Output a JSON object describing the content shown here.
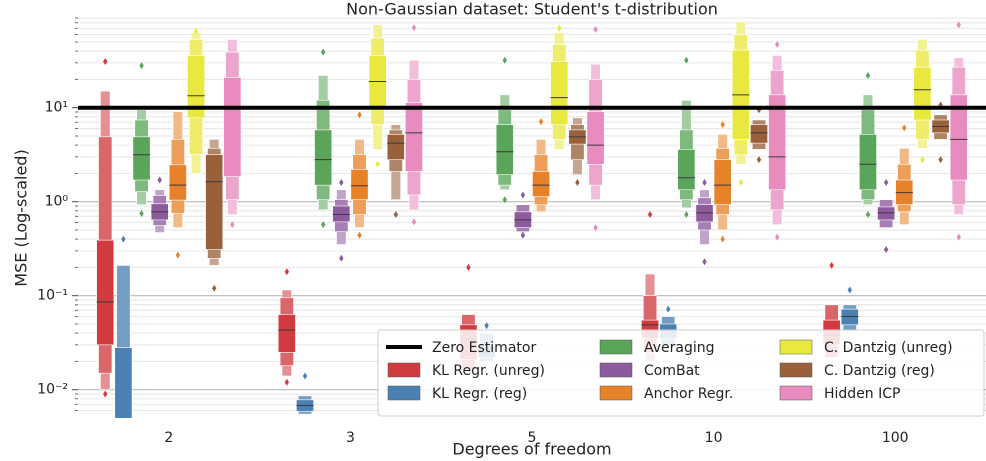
{
  "chart_data": {
    "type": "boxen",
    "title": "Non-Gaussian dataset: Student's t-distribution",
    "x_label": "Degrees of freedom",
    "y_label": "MSE (Log-scaled)",
    "log_y": true,
    "grid": true,
    "legend_loc": "lower right",
    "categories": [
      "2",
      "3",
      "5",
      "10",
      "100"
    ],
    "ylim": [
      0.005,
      90
    ],
    "yticks": [
      {
        "value": 0.01,
        "label": "10⁻²"
      },
      {
        "value": 0.1,
        "label": "10⁻¹"
      },
      {
        "value": 1,
        "label": "10⁰"
      },
      {
        "value": 10,
        "label": "10¹"
      }
    ],
    "minor_yticks": [
      0.006,
      0.007,
      0.008,
      0.009,
      0.02,
      0.03,
      0.04,
      0.05,
      0.06,
      0.07,
      0.08,
      0.09,
      0.2,
      0.3,
      0.4,
      0.5,
      0.6,
      0.7,
      0.8,
      0.9,
      2,
      3,
      4,
      5,
      6,
      7,
      8,
      9,
      20,
      30,
      40,
      50,
      60,
      70,
      80,
      90
    ],
    "reference": {
      "name": "Zero Estimator",
      "value": 10,
      "color": "#000000"
    },
    "series": [
      {
        "name": "KL Regr. (unreg)",
        "color": "#d13b40",
        "values": [
          {
            "median": 0.086,
            "boxes": [
              [
                0.03,
                0.39
              ],
              [
                0.015,
                4.9
              ],
              [
                0.01,
                15
              ]
            ],
            "outliers": [
              31,
              0.009
            ]
          },
          {
            "median": 0.043,
            "boxes": [
              [
                0.025,
                0.063
              ],
              [
                0.018,
                0.095
              ],
              [
                0.014,
                0.115
              ]
            ],
            "outliers": [
              0.18,
              0.012
            ]
          },
          {
            "median": 0.034,
            "boxes": [
              [
                0.021,
                0.049
              ],
              [
                0.016,
                0.063
              ]
            ],
            "outliers": [
              0.2
            ]
          },
          {
            "median": 0.049,
            "boxes": [
              [
                0.035,
                0.055
              ],
              [
                0.025,
                0.1
              ],
              [
                0.02,
                0.17
              ]
            ],
            "outliers": [
              0.73
            ]
          },
          {
            "median": 0.038,
            "boxes": [
              [
                0.03,
                0.055
              ],
              [
                0.022,
                0.08
              ]
            ],
            "outliers": [
              0.21
            ]
          }
        ]
      },
      {
        "name": "KL Regr. (reg)",
        "color": "#4b81b2",
        "values": [
          {
            "median": 0.003,
            "boxes": [
              [
                0.002,
                0.028
              ],
              [
                0.001,
                0.21
              ]
            ],
            "outliers": [
              0.4
            ]
          },
          {
            "median": 0.0068,
            "boxes": [
              [
                0.0059,
                0.0078
              ],
              [
                0.0055,
                0.0086
              ]
            ],
            "outliers": [
              0.014
            ]
          },
          {
            "median": 0.025,
            "boxes": [
              [
                0.022,
                0.03
              ],
              [
                0.02,
                0.04
              ]
            ],
            "outliers": [
              0.048
            ]
          },
          {
            "median": 0.043,
            "boxes": [
              [
                0.035,
                0.05
              ],
              [
                0.03,
                0.06
              ]
            ],
            "outliers": [
              0.072
            ]
          },
          {
            "median": 0.06,
            "boxes": [
              [
                0.049,
                0.072
              ],
              [
                0.043,
                0.08
              ]
            ],
            "outliers": [
              0.115
            ]
          }
        ]
      },
      {
        "name": "Averaging",
        "color": "#5aa55a",
        "values": [
          {
            "median": 3.16,
            "boxes": [
              [
                1.7,
                4.9
              ],
              [
                1.28,
                7.4
              ],
              [
                0.93,
                9.5
              ]
            ],
            "outliers": [
              28,
              0.75
            ]
          },
          {
            "median": 2.8,
            "boxes": [
              [
                1.5,
                5.8
              ],
              [
                1.05,
                12
              ],
              [
                0.82,
                22
              ]
            ],
            "outliers": [
              39,
              0.57
            ]
          },
          {
            "median": 3.4,
            "boxes": [
              [
                1.94,
                6.6
              ],
              [
                1.5,
                9.5
              ],
              [
                1.34,
                13.7
              ]
            ],
            "outliers": [
              32,
              1.05
            ]
          },
          {
            "median": 1.8,
            "boxes": [
              [
                1.34,
                3.6
              ],
              [
                1.05,
                5.8
              ],
              [
                0.86,
                12
              ]
            ],
            "outliers": [
              32,
              0.73
            ]
          },
          {
            "median": 2.5,
            "boxes": [
              [
                1.34,
                5.2
              ],
              [
                1.05,
                9.5
              ],
              [
                0.93,
                13.7
              ]
            ],
            "outliers": [
              22,
              0.73
            ]
          }
        ]
      },
      {
        "name": "ComBat",
        "color": "#8e5a9e",
        "values": [
          {
            "median": 0.78,
            "boxes": [
              [
                0.64,
                0.95
              ],
              [
                0.56,
                1.16
              ],
              [
                0.47,
                1.34
              ]
            ],
            "outliers": [
              1.7
            ]
          },
          {
            "median": 0.73,
            "boxes": [
              [
                0.61,
                0.9
              ],
              [
                0.48,
                1.05
              ],
              [
                0.35,
                1.34
              ]
            ],
            "outliers": [
              1.6,
              0.25
            ]
          },
          {
            "median": 0.64,
            "boxes": [
              [
                0.53,
                0.78
              ],
              [
                0.48,
                0.93
              ]
            ],
            "outliers": [
              1.18,
              0.44
            ]
          },
          {
            "median": 0.76,
            "boxes": [
              [
                0.61,
                0.93
              ],
              [
                0.5,
                1.1
              ],
              [
                0.35,
                1.34
              ]
            ],
            "outliers": [
              1.6,
              0.23
            ]
          },
          {
            "median": 0.76,
            "boxes": [
              [
                0.64,
                0.88
              ],
              [
                0.53,
                1.05
              ]
            ],
            "outliers": [
              1.6,
              0.31
            ]
          }
        ]
      },
      {
        "name": "Anchor Regr.",
        "color": "#e8822a",
        "values": [
          {
            "median": 1.5,
            "boxes": [
              [
                1.04,
                2.47
              ],
              [
                0.75,
                4.6
              ],
              [
                0.53,
                9.1
              ]
            ],
            "outliers": [
              0.27
            ]
          },
          {
            "median": 1.48,
            "boxes": [
              [
                1.05,
                2.2
              ],
              [
                0.73,
                3.16
              ],
              [
                0.53,
                4.6
              ]
            ],
            "outliers": [
              8.4,
              0.44
            ]
          },
          {
            "median": 1.5,
            "boxes": [
              [
                1.13,
                2.1
              ],
              [
                0.93,
                3.16
              ],
              [
                0.78,
                4.6
              ]
            ],
            "outliers": [
              7.1
            ]
          },
          {
            "median": 1.5,
            "boxes": [
              [
                0.93,
                2.8
              ],
              [
                0.73,
                3.7
              ],
              [
                0.5,
                5.2
              ]
            ],
            "outliers": [
              6.6,
              0.4
            ]
          },
          {
            "median": 1.25,
            "boxes": [
              [
                0.93,
                1.7
              ],
              [
                0.78,
                2.5
              ],
              [
                0.57,
                3.7
              ]
            ],
            "outliers": [
              6.1
            ]
          }
        ]
      },
      {
        "name": "C. Dantzig (unreg)",
        "color": "#e8e841",
        "values": [
          {
            "median": 13.4,
            "boxes": [
              [
                7.8,
                36
              ],
              [
                3.16,
                53
              ],
              [
                2,
                63
              ]
            ],
            "outliers": [
              65
            ]
          },
          {
            "median": 19,
            "boxes": [
              [
                9.5,
                36
              ],
              [
                6.6,
                55
              ],
              [
                3.6,
                76
              ]
            ],
            "outliers": [
              2.5
            ]
          },
          {
            "median": 12.8,
            "boxes": [
              [
                6.6,
                31
              ],
              [
                4.6,
                47
              ],
              [
                3.6,
                63
              ]
            ],
            "outliers": [
              70
            ]
          },
          {
            "median": 13.7,
            "boxes": [
              [
                4.6,
                41
              ],
              [
                3.16,
                60
              ],
              [
                2.5,
                82
              ]
            ],
            "outliers": [
              1.6
            ]
          },
          {
            "median": 15.5,
            "boxes": [
              [
                7.4,
                27
              ],
              [
                4.6,
                41
              ],
              [
                3.7,
                53
              ]
            ],
            "outliers": [
              2.8
            ]
          }
        ]
      },
      {
        "name": "C. Dantzig (reg)",
        "color": "#99603a",
        "values": [
          {
            "median": 1.63,
            "boxes": [
              [
                0.31,
                3.16
              ],
              [
                0.25,
                3.7
              ],
              [
                0.21,
                4.6
              ]
            ],
            "outliers": [
              0.12
            ]
          },
          {
            "median": 4.2,
            "boxes": [
              [
                2.8,
                5.2
              ],
              [
                2.1,
                5.8
              ],
              [
                1.05,
                6.6
              ]
            ],
            "outliers": [
              0.73
            ]
          },
          {
            "median": 4.9,
            "boxes": [
              [
                4.1,
                5.8
              ],
              [
                2.8,
                6.6
              ],
              [
                1.94,
                7.8
              ]
            ],
            "outliers": [
              1.6
            ]
          },
          {
            "median": 5.4,
            "boxes": [
              [
                4.2,
                6.6
              ],
              [
                3.6,
                7.4
              ]
            ],
            "outliers": [
              9.5,
              2.8
            ]
          },
          {
            "median": 6.3,
            "boxes": [
              [
                5.4,
                7.4
              ],
              [
                4.6,
                8.4
              ]
            ],
            "outliers": [
              10.7,
              2.8
            ]
          }
        ]
      },
      {
        "name": "Hidden ICP",
        "color": "#e88bbf",
        "values": [
          {
            "median": 10,
            "boxes": [
              [
                1.85,
                21
              ],
              [
                1.05,
                39
              ],
              [
                0.73,
                53
              ]
            ],
            "outliers": [
              0.57
            ]
          },
          {
            "median": 5.4,
            "boxes": [
              [
                2.1,
                11.3
              ],
              [
                1.18,
                20
              ],
              [
                0.82,
                32
              ]
            ],
            "outliers": [
              71,
              0.61
            ]
          },
          {
            "median": 4,
            "boxes": [
              [
                2.5,
                9.1
              ],
              [
                1.5,
                20
              ],
              [
                1.05,
                29
              ]
            ],
            "outliers": [
              68,
              0.53
            ]
          },
          {
            "median": 3,
            "boxes": [
              [
                1.34,
                13.7
              ],
              [
                0.82,
                25
              ],
              [
                0.57,
                36
              ]
            ],
            "outliers": [
              47,
              0.42
            ]
          },
          {
            "median": 4.6,
            "boxes": [
              [
                1.7,
                13.7
              ],
              [
                0.93,
                27
              ],
              [
                0.73,
                34
              ]
            ],
            "outliers": [
              76,
              0.42
            ]
          }
        ]
      }
    ]
  }
}
